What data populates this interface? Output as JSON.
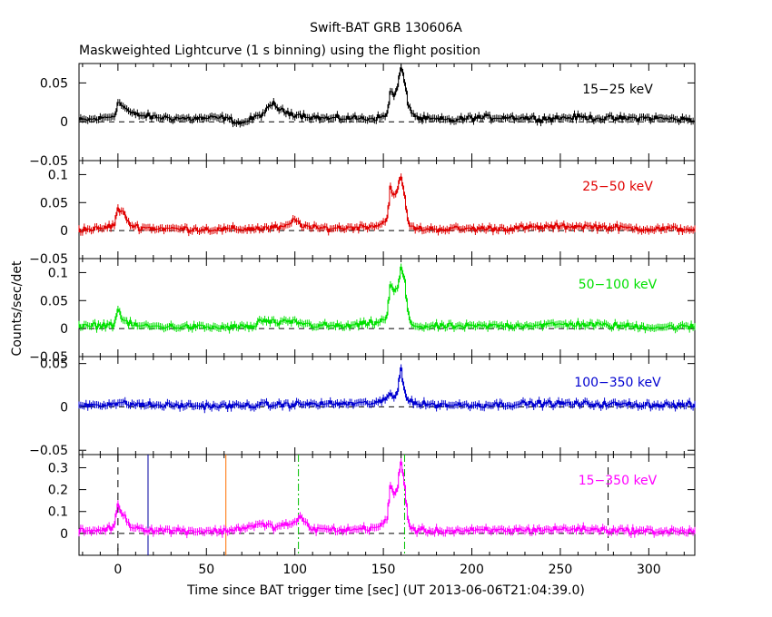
{
  "title": "Swift-BAT GRB 130606A",
  "subtitle": "Maskweighted Lightcurve (1 s binning) using the flight position",
  "ylabel": "Counts/sec/det",
  "xlabel": "Time since BAT trigger time [sec] (UT 2013-06-06T21:04:39.0)",
  "chart_data": [
    {
      "type": "line",
      "band": "15-25 keV",
      "label": "15−25 keV",
      "color": "#000000",
      "xlim": [
        -22,
        326
      ],
      "ylim": [
        -0.05,
        0.075
      ],
      "yticks": [
        -0.05,
        0,
        0.05
      ],
      "yticklabels": [
        "−0.05",
        "0",
        "0.05"
      ],
      "xticks": [
        0,
        50,
        100,
        150,
        200,
        250,
        300
      ],
      "x": [
        -20,
        -10,
        -2,
        0,
        3,
        8,
        20,
        40,
        60,
        70,
        80,
        85,
        88,
        92,
        100,
        110,
        120,
        130,
        140,
        150,
        152,
        154,
        156,
        158,
        160,
        162,
        164,
        166,
        170,
        180,
        190,
        200,
        220,
        240,
        260,
        280,
        300,
        320,
        326
      ],
      "values": [
        0.002,
        0.004,
        0.008,
        0.025,
        0.02,
        0.01,
        0.006,
        0.004,
        0.005,
        -0.002,
        0.008,
        0.016,
        0.024,
        0.014,
        0.01,
        0.006,
        0.004,
        0.005,
        0.004,
        0.006,
        0.01,
        0.04,
        0.032,
        0.045,
        0.07,
        0.05,
        0.025,
        0.012,
        0.004,
        0.003,
        0.002,
        0.005,
        0.006,
        0.004,
        0.006,
        0.004,
        0.005,
        0.003,
        0.002
      ]
    },
    {
      "type": "line",
      "band": "25-50 keV",
      "label": "25−50 keV",
      "color": "#e00000",
      "xlim": [
        -22,
        326
      ],
      "ylim": [
        -0.05,
        0.125
      ],
      "yticks": [
        -0.05,
        0,
        0.05,
        0.1
      ],
      "yticklabels": [
        "−0.05",
        "0",
        "0.05",
        "0.1"
      ],
      "xticks": [
        0,
        50,
        100,
        150,
        200,
        250,
        300
      ],
      "x": [
        -20,
        -10,
        -2,
        0,
        3,
        8,
        20,
        40,
        60,
        80,
        95,
        100,
        103,
        110,
        130,
        148,
        152,
        154,
        156,
        158,
        160,
        162,
        164,
        166,
        170,
        190,
        220,
        260,
        300,
        326
      ],
      "values": [
        0.002,
        0.003,
        0.01,
        0.04,
        0.03,
        0.008,
        0.004,
        0.003,
        0.002,
        0.004,
        0.006,
        0.02,
        0.012,
        0.004,
        0.005,
        0.01,
        0.02,
        0.08,
        0.06,
        0.07,
        0.1,
        0.06,
        0.015,
        0.006,
        0.003,
        0.003,
        0.004,
        0.008,
        0.003,
        0.003
      ]
    },
    {
      "type": "line",
      "band": "50-100 keV",
      "label": "50−100 keV",
      "color": "#00e000",
      "xlim": [
        -22,
        326
      ],
      "ylim": [
        -0.05,
        0.125
      ],
      "yticks": [
        -0.05,
        0,
        0.05,
        0.1
      ],
      "yticklabels": [
        "−0.05",
        "0",
        "0.05",
        "0.1"
      ],
      "xticks": [
        0,
        50,
        100,
        150,
        200,
        250,
        300
      ],
      "x": [
        -20,
        -2,
        0,
        3,
        8,
        20,
        40,
        60,
        78,
        80,
        90,
        100,
        110,
        130,
        148,
        152,
        154,
        156,
        158,
        160,
        162,
        164,
        166,
        170,
        200,
        260,
        300,
        326
      ],
      "values": [
        0.003,
        0.008,
        0.035,
        0.015,
        0.006,
        0.004,
        0.003,
        0.002,
        0.004,
        0.015,
        0.01,
        0.012,
        0.006,
        0.004,
        0.012,
        0.02,
        0.08,
        0.065,
        0.07,
        0.11,
        0.085,
        0.025,
        0.008,
        0.004,
        0.004,
        0.008,
        0.003,
        0.003
      ]
    },
    {
      "type": "line",
      "band": "100-350 keV",
      "label": "100−350 keV",
      "color": "#0000d0",
      "xlim": [
        -22,
        326
      ],
      "ylim": [
        -0.055,
        0.058
      ],
      "yticks": [
        -0.05,
        0,
        0.05
      ],
      "yticklabels": [
        "−0.05",
        "0",
        "0.05"
      ],
      "xticks": [
        0,
        50,
        100,
        150,
        200,
        250,
        300
      ],
      "x": [
        -20,
        0,
        20,
        60,
        100,
        140,
        150,
        154,
        156,
        158,
        160,
        162,
        164,
        170,
        200,
        240,
        280,
        326
      ],
      "values": [
        0.002,
        0.004,
        0.002,
        0.001,
        0.003,
        0.004,
        0.006,
        0.015,
        0.01,
        0.018,
        0.045,
        0.02,
        0.008,
        0.003,
        0.002,
        0.004,
        0.003,
        0.002
      ]
    },
    {
      "type": "line",
      "band": "15-350 keV",
      "label": "15−350 keV",
      "color": "#ff00ff",
      "xlim": [
        -22,
        326
      ],
      "ylim": [
        -0.1,
        0.36
      ],
      "yticks": [
        0,
        0.1,
        0.2,
        0.3
      ],
      "yticklabels": [
        "0",
        "0.1",
        "0.2",
        "0.3"
      ],
      "xticks": [
        0,
        50,
        100,
        150,
        200,
        250,
        300
      ],
      "xticklabels": [
        "0",
        "50",
        "100",
        "150",
        "200",
        "250",
        "300"
      ],
      "x": [
        -20,
        -10,
        -2,
        0,
        3,
        8,
        20,
        40,
        60,
        80,
        90,
        100,
        103,
        110,
        130,
        148,
        152,
        154,
        156,
        158,
        160,
        162,
        164,
        166,
        170,
        200,
        260,
        300,
        326
      ],
      "values": [
        0.01,
        0.015,
        0.03,
        0.14,
        0.08,
        0.03,
        0.015,
        0.012,
        0.01,
        0.04,
        0.03,
        0.05,
        0.07,
        0.02,
        0.015,
        0.03,
        0.06,
        0.22,
        0.18,
        0.2,
        0.34,
        0.22,
        0.06,
        0.02,
        0.012,
        0.012,
        0.02,
        0.01,
        0.01
      ],
      "markers": [
        {
          "x": 0,
          "color": "#000000",
          "style": "dashed"
        },
        {
          "x": 17,
          "color": "#0000a0",
          "style": "solid"
        },
        {
          "x": 61,
          "color": "#ff7000",
          "style": "solid"
        },
        {
          "x": 102,
          "color": "#00c000",
          "style": "dashdot"
        },
        {
          "x": 162,
          "color": "#00c000",
          "style": "dashdot"
        },
        {
          "x": 277,
          "color": "#000000",
          "style": "dashed"
        }
      ]
    }
  ]
}
